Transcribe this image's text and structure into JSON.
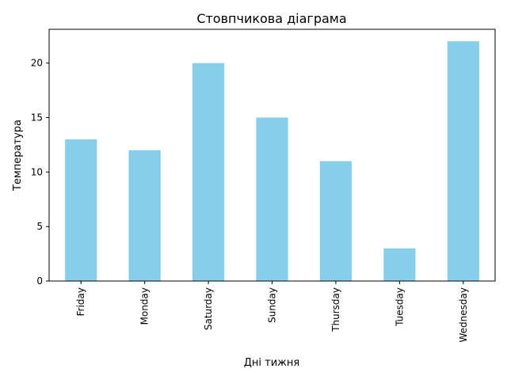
{
  "chart_data": {
    "type": "bar",
    "title": "Стовпчикова діаграма",
    "xlabel": "Дні тижня",
    "ylabel": "Температура",
    "categories": [
      "Friday",
      "Monday",
      "Saturday",
      "Sunday",
      "Thursday",
      "Tuesday",
      "Wednesday"
    ],
    "values": [
      13,
      12,
      20,
      15,
      11,
      3,
      22
    ],
    "ylim": [
      0,
      23.1
    ],
    "yticks": [
      0,
      5,
      10,
      15,
      20
    ],
    "bar_color": "#87ceeb",
    "grid": false,
    "legend": "none"
  }
}
